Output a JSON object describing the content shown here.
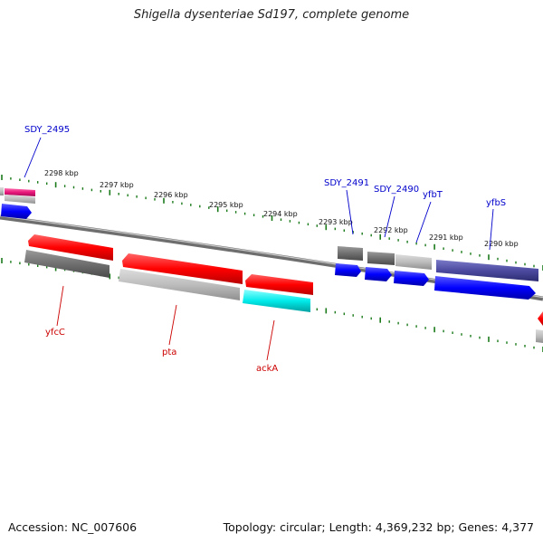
{
  "title": "Shigella dysenteriae Sd197, complete genome",
  "footer": {
    "accession": "Accession: NC_007606",
    "summary": "Topology: circular; Length: 4,369,232 bp; Genes: 4,377"
  },
  "ticks": [
    "2298 kbp",
    "2297 kbp",
    "2296 kbp",
    "2295 kbp",
    "2294 kbp",
    "2293 kbp",
    "2292 kbp",
    "2291 kbp",
    "2290 kbp"
  ],
  "genes_top": [
    "SDY_2495",
    "SDY_2491",
    "SDY_2490",
    "yfbT",
    "yfbS"
  ],
  "genes_bottom": [
    "yfcC",
    "pta",
    "ackA"
  ],
  "colors": {
    "label_top": "#0000cc",
    "label_bottom": "#cc0000",
    "cds_red": "#ff0000",
    "cds_blue": "#0000ff",
    "cds_gray": "#777777",
    "cds_lightgray": "#bbbbbb",
    "cds_cyan": "#00e5e5",
    "cds_purple": "#4b4aa0",
    "cds_pink": "#e8167a",
    "tick_green": "#1a7a1a"
  }
}
